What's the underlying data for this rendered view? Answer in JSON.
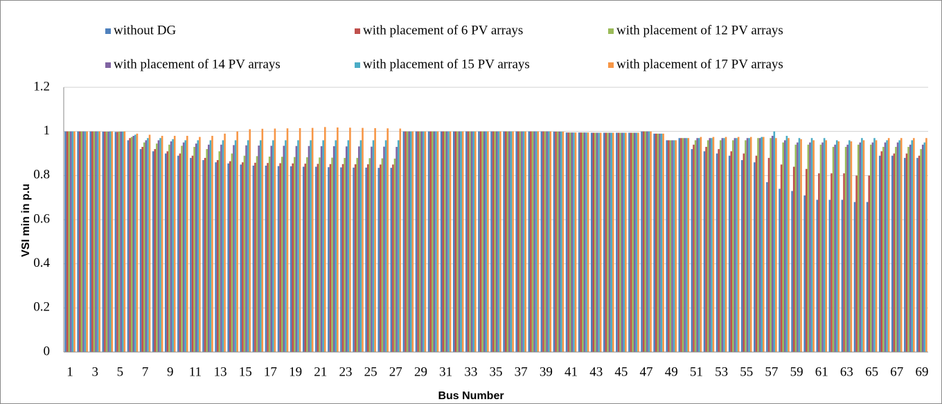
{
  "chart_data": {
    "type": "bar",
    "x_label": "Bus Number",
    "y_label": "VSI min in p.u",
    "categories": [
      "1",
      null,
      "3",
      null,
      "5",
      null,
      "7",
      null,
      "9",
      null,
      "11",
      null,
      "13",
      null,
      "15",
      null,
      "17",
      null,
      "19",
      null,
      "21",
      null,
      "23",
      null,
      "25",
      null,
      "27",
      null,
      "29",
      null,
      "31",
      null,
      "33",
      null,
      "35",
      null,
      "37",
      null,
      "39",
      null,
      "41",
      null,
      "43",
      null,
      "45",
      null,
      "47",
      null,
      "49",
      null,
      "51",
      null,
      "53",
      null,
      "55",
      null,
      "57",
      null,
      "59",
      null,
      "61",
      null,
      "63",
      null,
      "65",
      null,
      "67",
      null,
      "69"
    ],
    "ylim": [
      0,
      1.2
    ],
    "yticks": [
      0,
      0.2,
      0.4,
      0.6,
      0.8,
      1,
      1.2
    ],
    "grid": true,
    "series": [
      {
        "name": "without DG",
        "color": "#4f81bd",
        "values": [
          1.0,
          1.0,
          1.0,
          0.999,
          0.998,
          0.96,
          0.92,
          0.91,
          0.9,
          0.89,
          0.88,
          0.87,
          0.86,
          0.855,
          0.85,
          0.845,
          0.845,
          0.843,
          0.842,
          0.84,
          0.84,
          0.838,
          0.837,
          0.836,
          0.836,
          0.835,
          0.835,
          1.0,
          1.0,
          1.0,
          1.0,
          1.0,
          1.0,
          1.0,
          1.0,
          1.0,
          1.0,
          1.0,
          1.0,
          0.999,
          0.995,
          0.995,
          0.994,
          0.994,
          0.994,
          0.994,
          1.0,
          0.99,
          0.96,
          0.97,
          0.92,
          0.91,
          0.9,
          0.89,
          0.87,
          0.86,
          0.77,
          0.74,
          0.73,
          0.71,
          0.69,
          0.69,
          0.69,
          0.68,
          0.68,
          0.89,
          0.89,
          0.88,
          0.88
        ]
      },
      {
        "name": "with placement of 6 PV arrays",
        "color": "#c0504d",
        "values": [
          1.0,
          1.0,
          1.0,
          0.999,
          0.998,
          0.97,
          0.93,
          0.92,
          0.91,
          0.9,
          0.89,
          0.88,
          0.87,
          0.865,
          0.86,
          0.858,
          0.857,
          0.856,
          0.855,
          0.854,
          0.853,
          0.852,
          0.852,
          0.851,
          0.851,
          0.85,
          0.85,
          1.0,
          1.0,
          1.0,
          1.0,
          1.0,
          1.0,
          1.0,
          1.0,
          1.0,
          1.0,
          1.0,
          1.0,
          0.999,
          0.995,
          0.995,
          0.994,
          0.994,
          0.994,
          0.994,
          1.0,
          0.99,
          0.96,
          0.97,
          0.94,
          0.93,
          0.92,
          0.91,
          0.9,
          0.89,
          0.88,
          0.85,
          0.84,
          0.83,
          0.81,
          0.81,
          0.81,
          0.8,
          0.8,
          0.91,
          0.9,
          0.9,
          0.89
        ]
      },
      {
        "name": "with placement of 12 PV arrays",
        "color": "#9bbb59",
        "values": [
          1.0,
          1.0,
          1.0,
          0.999,
          0.999,
          0.975,
          0.95,
          0.945,
          0.94,
          0.935,
          0.93,
          0.92,
          0.91,
          0.9,
          0.89,
          0.888,
          0.886,
          0.885,
          0.884,
          0.883,
          0.882,
          0.881,
          0.88,
          0.88,
          0.879,
          0.878,
          0.877,
          1.0,
          1.0,
          1.0,
          1.0,
          1.0,
          1.0,
          1.0,
          1.0,
          1.0,
          1.0,
          1.0,
          1.0,
          0.999,
          0.995,
          0.995,
          0.994,
          0.994,
          0.994,
          0.994,
          1.0,
          0.99,
          0.96,
          0.97,
          0.96,
          0.96,
          0.96,
          0.96,
          0.96,
          0.97,
          0.97,
          0.95,
          0.94,
          0.94,
          0.94,
          0.93,
          0.93,
          0.94,
          0.94,
          0.93,
          0.93,
          0.93,
          0.92
        ]
      },
      {
        "name": "with placement of 14 PV arrays",
        "color": "#8064a2",
        "values": [
          1.0,
          1.0,
          1.0,
          0.999,
          0.999,
          0.98,
          0.96,
          0.96,
          0.955,
          0.95,
          0.945,
          0.94,
          0.94,
          0.938,
          0.937,
          0.936,
          0.935,
          0.935,
          0.934,
          0.934,
          0.933,
          0.933,
          0.932,
          0.932,
          0.931,
          0.931,
          0.93,
          1.0,
          1.0,
          1.0,
          1.0,
          1.0,
          1.0,
          1.0,
          1.0,
          1.0,
          1.0,
          1.0,
          1.0,
          0.999,
          0.995,
          0.995,
          0.994,
          0.994,
          0.994,
          0.994,
          1.0,
          0.99,
          0.96,
          0.97,
          0.97,
          0.97,
          0.97,
          0.97,
          0.97,
          0.97,
          0.98,
          0.96,
          0.95,
          0.95,
          0.95,
          0.94,
          0.94,
          0.95,
          0.95,
          0.95,
          0.95,
          0.94,
          0.94
        ]
      },
      {
        "name": "with placement of 15 PV arrays",
        "color": "#4bacc6",
        "values": [
          1.0,
          1.0,
          1.0,
          1.0,
          0.999,
          0.985,
          0.97,
          0.97,
          0.965,
          0.96,
          0.96,
          0.96,
          0.96,
          0.96,
          0.96,
          0.96,
          0.96,
          0.96,
          0.96,
          0.96,
          0.96,
          0.96,
          0.96,
          0.96,
          0.96,
          0.96,
          0.96,
          1.0,
          1.0,
          1.0,
          1.0,
          1.0,
          1.0,
          1.0,
          1.0,
          1.0,
          1.0,
          1.0,
          1.0,
          0.999,
          0.995,
          0.995,
          0.994,
          0.994,
          0.994,
          0.994,
          1.0,
          0.99,
          0.96,
          0.97,
          0.97,
          0.97,
          0.97,
          0.97,
          0.97,
          0.975,
          1.0,
          0.98,
          0.97,
          0.97,
          0.97,
          0.96,
          0.96,
          0.97,
          0.97,
          0.96,
          0.96,
          0.96,
          0.95
        ]
      },
      {
        "name": "with placement of 17 PV arrays",
        "color": "#f79646",
        "values": [
          1.0,
          1.0,
          1.0,
          1.0,
          1.0,
          0.99,
          0.985,
          0.98,
          0.98,
          0.98,
          0.975,
          0.98,
          0.99,
          1.0,
          1.01,
          1.012,
          1.013,
          1.014,
          1.015,
          1.016,
          1.02,
          1.018,
          1.017,
          1.016,
          1.015,
          1.014,
          1.013,
          1.0,
          1.0,
          1.0,
          1.0,
          1.0,
          1.0,
          1.0,
          1.0,
          1.0,
          1.0,
          1.0,
          1.0,
          0.999,
          0.995,
          0.995,
          0.994,
          0.994,
          0.994,
          0.994,
          1.0,
          0.99,
          0.96,
          0.97,
          0.975,
          0.975,
          0.975,
          0.975,
          0.975,
          0.975,
          0.97,
          0.97,
          0.965,
          0.96,
          0.96,
          0.955,
          0.955,
          0.96,
          0.96,
          0.97,
          0.97,
          0.97,
          0.97
        ]
      }
    ]
  }
}
